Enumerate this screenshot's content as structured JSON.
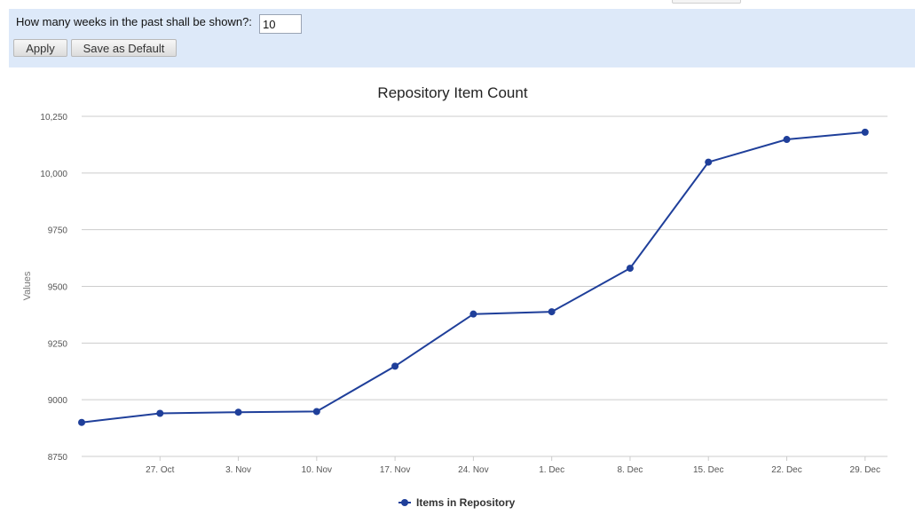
{
  "settings": {
    "weeks_label": "How many weeks in the past shall be shown?:",
    "weeks_value": "10",
    "apply_label": "Apply",
    "save_default_label": "Save as Default"
  },
  "chart_data": {
    "type": "line",
    "title": "Repository Item Count",
    "xlabel": "",
    "ylabel": "Values",
    "x_ticks": [
      "27. Oct",
      "3. Nov",
      "10. Nov",
      "17. Nov",
      "24. Nov",
      "1. Dec",
      "8. Dec",
      "15. Dec",
      "22. Dec",
      "29. Dec"
    ],
    "y_ticks": [
      "8750",
      "9000",
      "9250",
      "9500",
      "9750",
      "10,000",
      "10,250"
    ],
    "xlim": [
      "2013-10-21",
      "2014-01-01"
    ],
    "ylim": [
      8750,
      10250
    ],
    "grid": true,
    "legend_position": "bottom-center",
    "color": "#1f3f9a",
    "series": [
      {
        "name": "Items in Repository",
        "x": [
          "2013-10-21",
          "2013-10-28",
          "2013-11-04",
          "2013-11-11",
          "2013-11-18",
          "2013-11-25",
          "2013-12-02",
          "2013-12-09",
          "2013-12-16",
          "2013-12-23",
          "2013-12-30"
        ],
        "values": [
          8900,
          8940,
          8945,
          8948,
          9148,
          9378,
          9388,
          9580,
          10048,
          10148,
          10180
        ]
      }
    ]
  }
}
